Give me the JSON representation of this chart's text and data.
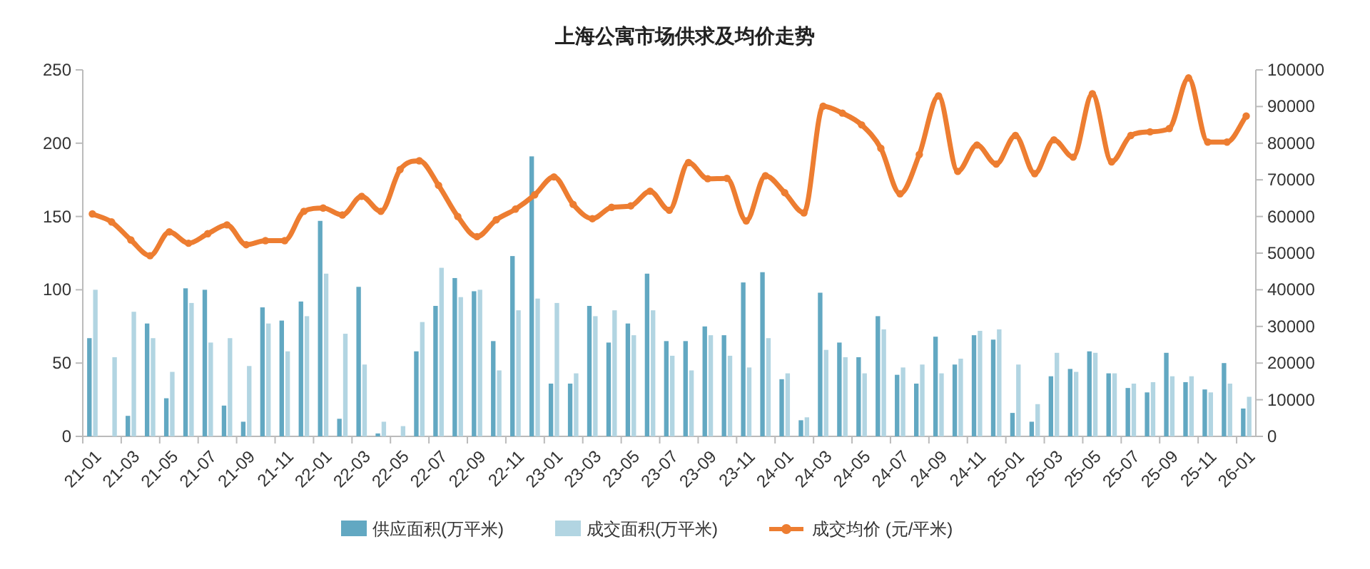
{
  "chart_data": {
    "type": "bar",
    "title": "上海公寓市场供求及均价走势",
    "categories": [
      "21-01",
      null,
      "21-03",
      null,
      "21-05",
      null,
      "21-07",
      null,
      "21-09",
      null,
      "21-11",
      null,
      "22-01",
      null,
      "22-03",
      null,
      "22-05",
      null,
      "22-07",
      null,
      "22-09",
      null,
      "22-11",
      null,
      "23-01",
      null,
      "23-03",
      null,
      "23-05",
      null,
      "23-07",
      null,
      "23-09",
      null,
      "23-11",
      null,
      "24-01",
      null,
      "24-03",
      null,
      "24-05",
      null,
      "24-07",
      null,
      "24-09",
      null,
      "24-11",
      null,
      "25-01",
      null,
      "25-03",
      null,
      "25-05",
      null,
      "25-07",
      null,
      "25-09",
      null,
      "25-11",
      null,
      "26-01"
    ],
    "series": [
      {
        "name": "供应面积(万平米)",
        "color": "#62a8c2",
        "values": [
          67,
          0,
          14,
          77,
          26,
          101,
          100,
          21,
          10,
          88,
          79,
          92,
          147,
          12,
          102,
          2,
          0,
          58,
          89,
          108,
          99,
          65,
          123,
          191,
          36,
          36,
          89,
          64,
          77,
          111,
          65,
          65,
          75,
          69,
          105,
          112,
          39,
          11,
          98,
          64,
          54,
          82,
          42,
          36,
          68,
          49,
          69,
          66,
          16,
          10,
          41,
          46,
          58,
          43,
          33,
          30,
          57,
          37,
          32,
          50,
          19
        ]
      },
      {
        "name": "成交面积(万平米)",
        "color": "#b2d5e2",
        "values": [
          100,
          54,
          85,
          67,
          44,
          91,
          64,
          67,
          48,
          77,
          58,
          82,
          111,
          70,
          49,
          10,
          7,
          78,
          115,
          95,
          100,
          45,
          86,
          94,
          91,
          43,
          82,
          86,
          69,
          86,
          55,
          45,
          69,
          55,
          47,
          67,
          43,
          13,
          59,
          54,
          43,
          73,
          47,
          49,
          43,
          53,
          72,
          73,
          49,
          22,
          57,
          44,
          57,
          43,
          36,
          37,
          41,
          41,
          30,
          36,
          27
        ]
      },
      {
        "name": "成交均价 (元/平米)",
        "type": "line",
        "axis": "y2",
        "color": "#ed7d31",
        "values": [
          60700,
          58500,
          53600,
          49300,
          55800,
          52700,
          55300,
          57700,
          52300,
          53400,
          53400,
          61400,
          62300,
          60400,
          65500,
          61400,
          72800,
          75200,
          68500,
          60000,
          54500,
          59100,
          62000,
          65900,
          70800,
          63300,
          59400,
          62500,
          62900,
          66900,
          61700,
          74700,
          70300,
          70400,
          58800,
          71100,
          66500,
          61000,
          90100,
          88200,
          85000,
          78600,
          66200,
          76900,
          92900,
          72300,
          79500,
          74300,
          82100,
          71700,
          80900,
          76200,
          93500,
          74900,
          82100,
          83100,
          84000,
          97800,
          80300,
          80300,
          87400
        ]
      }
    ],
    "ylim": [
      0,
      250
    ],
    "yticks": [
      0,
      50,
      100,
      150,
      200,
      250
    ],
    "y2lim": [
      0,
      100000
    ],
    "y2ticks": [
      0,
      10000,
      20000,
      30000,
      40000,
      50000,
      60000,
      70000,
      80000,
      90000,
      100000
    ],
    "legend": "bottom",
    "marker": "circle",
    "line_style": "solid"
  }
}
